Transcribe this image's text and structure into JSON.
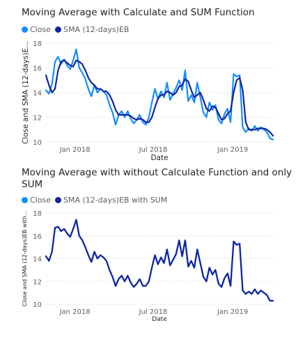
{
  "charts": [
    {
      "title_line1": "Moving Average with Calculate and SUM Function",
      "title_line2": "",
      "legend": [
        {
          "label": "Close",
          "color": "#118DFF"
        },
        {
          "label": "SMA (12-days)EB",
          "color": "#12239E"
        }
      ]
    },
    {
      "title_line1": "Moving Average with without Calculate Function and only",
      "title_line2": "SUM",
      "legend": [
        {
          "label": "Close",
          "color": "#118DFF"
        },
        {
          "label": "SMA (12-days)EB with SUM",
          "color": "#12239E"
        }
      ]
    }
  ],
  "chart_data": [
    {
      "type": "line",
      "title": "Moving Average with Calculate and SUM Function",
      "xlabel": "Date",
      "ylabel": "Close and SMA (12-days)E...",
      "ylim": [
        10,
        18
      ],
      "yticks": [
        10,
        12,
        14,
        16,
        18
      ],
      "xticks": [
        {
          "label": "Jan 2018",
          "x": "2018-01-01"
        },
        {
          "label": "Jul 2018",
          "x": "2018-07-01"
        },
        {
          "label": "Jan 2019",
          "x": "2019-01-01"
        }
      ],
      "xlim": [
        "2017-10-26",
        "2019-04-04"
      ],
      "grid": true,
      "legend_position": "top-left",
      "series": [
        {
          "name": "Close",
          "color": "#118DFF",
          "x": [
            "2017-10-26",
            "2017-11-02",
            "2017-11-09",
            "2017-11-16",
            "2017-11-23",
            "2017-11-30",
            "2017-12-07",
            "2017-12-14",
            "2017-12-21",
            "2017-12-28",
            "2018-01-04",
            "2018-01-11",
            "2018-01-18",
            "2018-01-25",
            "2018-02-01",
            "2018-02-08",
            "2018-02-15",
            "2018-02-22",
            "2018-03-01",
            "2018-03-08",
            "2018-03-15",
            "2018-03-22",
            "2018-03-29",
            "2018-04-05",
            "2018-04-12",
            "2018-04-19",
            "2018-04-26",
            "2018-05-03",
            "2018-05-10",
            "2018-05-17",
            "2018-05-24",
            "2018-05-31",
            "2018-06-07",
            "2018-06-14",
            "2018-06-21",
            "2018-06-28",
            "2018-07-05",
            "2018-07-12",
            "2018-07-19",
            "2018-07-26",
            "2018-08-02",
            "2018-08-09",
            "2018-08-16",
            "2018-08-23",
            "2018-08-30",
            "2018-09-06",
            "2018-09-13",
            "2018-09-20",
            "2018-09-27",
            "2018-10-04",
            "2018-10-11",
            "2018-10-18",
            "2018-10-25",
            "2018-11-01",
            "2018-11-08",
            "2018-11-15",
            "2018-11-22",
            "2018-11-29",
            "2018-12-06",
            "2018-12-13",
            "2018-12-20",
            "2018-12-27",
            "2019-01-03",
            "2019-01-10",
            "2019-01-17",
            "2019-01-24",
            "2019-01-31",
            "2019-02-07",
            "2019-02-14",
            "2019-02-21",
            "2019-02-28",
            "2019-03-07",
            "2019-03-14",
            "2019-03-21",
            "2019-03-28",
            "2019-04-04"
          ],
          "y": [
            14.2,
            13.9,
            14.7,
            16.5,
            16.9,
            16.3,
            16.7,
            16.2,
            15.9,
            16.6,
            17.5,
            16.0,
            15.6,
            15.1,
            14.3,
            13.7,
            14.6,
            14.0,
            14.3,
            14.1,
            13.8,
            13.0,
            12.4,
            11.4,
            12.2,
            12.5,
            12.0,
            12.5,
            11.9,
            11.5,
            11.8,
            12.2,
            11.6,
            11.4,
            12.0,
            13.2,
            14.3,
            13.5,
            14.1,
            13.6,
            14.8,
            13.4,
            13.9,
            14.4,
            15.0,
            14.2,
            15.8,
            13.3,
            13.8,
            13.2,
            14.8,
            13.6,
            12.4,
            12.0,
            13.2,
            12.6,
            13.0,
            11.8,
            11.5,
            12.3,
            12.7,
            11.6,
            15.5,
            15.3,
            15.4,
            11.2,
            10.8,
            11.1,
            10.9,
            11.3,
            10.9,
            11.2,
            11.0,
            10.8,
            10.3,
            10.2
          ]
        },
        {
          "name": "SMA (12-days)EB",
          "color": "#12239E",
          "x": [
            "2017-10-26",
            "2017-11-02",
            "2017-11-09",
            "2017-11-16",
            "2017-11-23",
            "2017-11-30",
            "2017-12-07",
            "2017-12-14",
            "2017-12-21",
            "2017-12-28",
            "2018-01-04",
            "2018-01-11",
            "2018-01-18",
            "2018-01-25",
            "2018-02-01",
            "2018-02-08",
            "2018-02-15",
            "2018-02-22",
            "2018-03-01",
            "2018-03-08",
            "2018-03-15",
            "2018-03-22",
            "2018-03-29",
            "2018-04-05",
            "2018-04-12",
            "2018-04-19",
            "2018-04-26",
            "2018-05-03",
            "2018-05-10",
            "2018-05-17",
            "2018-05-24",
            "2018-05-31",
            "2018-06-07",
            "2018-06-14",
            "2018-06-21",
            "2018-06-28",
            "2018-07-05",
            "2018-07-12",
            "2018-07-19",
            "2018-07-26",
            "2018-08-02",
            "2018-08-09",
            "2018-08-16",
            "2018-08-23",
            "2018-08-30",
            "2018-09-06",
            "2018-09-13",
            "2018-09-20",
            "2018-09-27",
            "2018-10-04",
            "2018-10-11",
            "2018-10-18",
            "2018-10-25",
            "2018-11-01",
            "2018-11-08",
            "2018-11-15",
            "2018-11-22",
            "2018-11-29",
            "2018-12-06",
            "2018-12-13",
            "2018-12-20",
            "2018-12-27",
            "2019-01-03",
            "2019-01-10",
            "2019-01-17",
            "2019-01-24",
            "2019-01-31",
            "2019-02-07",
            "2019-02-14",
            "2019-02-21",
            "2019-02-28",
            "2019-03-07",
            "2019-03-14",
            "2019-03-21",
            "2019-03-28",
            "2019-04-04"
          ],
          "y": [
            15.4,
            14.6,
            14.0,
            14.3,
            15.8,
            16.5,
            16.6,
            16.4,
            16.2,
            16.1,
            16.6,
            16.5,
            16.3,
            15.8,
            15.2,
            14.8,
            14.6,
            14.3,
            14.3,
            14.1,
            14.1,
            13.8,
            13.3,
            12.6,
            12.2,
            12.2,
            12.2,
            12.2,
            12.1,
            11.9,
            11.8,
            11.9,
            11.8,
            11.6,
            11.6,
            12.0,
            12.8,
            13.5,
            13.8,
            13.8,
            14.1,
            14.0,
            13.8,
            14.0,
            14.5,
            14.6,
            15.1,
            14.9,
            14.2,
            13.6,
            13.8,
            14.0,
            13.4,
            12.7,
            12.5,
            12.9,
            12.8,
            12.3,
            11.8,
            11.9,
            12.3,
            12.5,
            14.0,
            15.0,
            15.2,
            14.2,
            11.6,
            11.0,
            11.0,
            11.0,
            11.1,
            11.1,
            11.1,
            11.0,
            10.8,
            10.5
          ]
        }
      ]
    },
    {
      "type": "line",
      "title": "Moving Average with without Calculate Function and only SUM",
      "xlabel": "Date",
      "ylabel": "Close and SMA (12-days)EB with...",
      "ylim": [
        10,
        18
      ],
      "yticks": [
        10,
        12,
        14,
        16,
        18
      ],
      "xticks": [
        {
          "label": "Jan 2018",
          "x": "2018-01-01"
        },
        {
          "label": "Jul 2018",
          "x": "2018-07-01"
        },
        {
          "label": "Jan 2019",
          "x": "2019-01-01"
        }
      ],
      "xlim": [
        "2017-10-26",
        "2019-04-04"
      ],
      "grid": true,
      "legend_position": "top-left",
      "series": [
        {
          "name": "Close",
          "color": "#118DFF",
          "x": [
            "2017-10-26",
            "2017-11-02",
            "2017-11-09",
            "2017-11-16",
            "2017-11-23",
            "2017-11-30",
            "2017-12-07",
            "2017-12-14",
            "2017-12-21",
            "2017-12-28",
            "2018-01-04",
            "2018-01-11",
            "2018-01-18",
            "2018-01-25",
            "2018-02-01",
            "2018-02-08",
            "2018-02-15",
            "2018-02-22",
            "2018-03-01",
            "2018-03-08",
            "2018-03-15",
            "2018-03-22",
            "2018-03-29",
            "2018-04-05",
            "2018-04-12",
            "2018-04-19",
            "2018-04-26",
            "2018-05-03",
            "2018-05-10",
            "2018-05-17",
            "2018-05-24",
            "2018-05-31",
            "2018-06-07",
            "2018-06-14",
            "2018-06-21",
            "2018-06-28",
            "2018-07-05",
            "2018-07-12",
            "2018-07-19",
            "2018-07-26",
            "2018-08-02",
            "2018-08-09",
            "2018-08-16",
            "2018-08-23",
            "2018-08-30",
            "2018-09-06",
            "2018-09-13",
            "2018-09-20",
            "2018-09-27",
            "2018-10-04",
            "2018-10-11",
            "2018-10-18",
            "2018-10-25",
            "2018-11-01",
            "2018-11-08",
            "2018-11-15",
            "2018-11-22",
            "2018-11-29",
            "2018-12-06",
            "2018-12-13",
            "2018-12-20",
            "2018-12-27",
            "2019-01-03",
            "2019-01-10",
            "2019-01-17",
            "2019-01-24",
            "2019-01-31",
            "2019-02-07",
            "2019-02-14",
            "2019-02-21",
            "2019-02-28",
            "2019-03-07",
            "2019-03-14",
            "2019-03-21",
            "2019-03-28",
            "2019-04-04"
          ],
          "y": [
            14.2,
            13.8,
            14.6,
            16.7,
            16.8,
            16.4,
            16.6,
            16.2,
            15.9,
            16.6,
            17.4,
            16.0,
            15.6,
            15.0,
            14.3,
            13.7,
            14.6,
            14.0,
            14.3,
            14.1,
            13.8,
            13.0,
            12.4,
            11.6,
            12.2,
            12.5,
            12.0,
            12.5,
            11.9,
            11.5,
            11.8,
            12.2,
            11.6,
            11.6,
            12.0,
            13.2,
            14.3,
            13.5,
            14.1,
            13.6,
            14.8,
            13.4,
            13.9,
            14.4,
            15.6,
            14.2,
            15.6,
            13.3,
            13.8,
            13.2,
            14.8,
            13.6,
            12.4,
            12.0,
            13.2,
            12.6,
            13.0,
            11.8,
            11.5,
            12.3,
            12.7,
            11.6,
            15.5,
            15.2,
            15.3,
            11.2,
            10.9,
            11.1,
            10.9,
            11.3,
            10.9,
            11.2,
            11.0,
            10.8,
            10.3,
            10.3
          ]
        },
        {
          "name": "SMA (12-days)EB with SUM",
          "color": "#12239E",
          "x": [
            "2017-10-26",
            "2017-11-02",
            "2017-11-09",
            "2017-11-16",
            "2017-11-23",
            "2017-11-30",
            "2017-12-07",
            "2017-12-14",
            "2017-12-21",
            "2017-12-28",
            "2018-01-04",
            "2018-01-11",
            "2018-01-18",
            "2018-01-25",
            "2018-02-01",
            "2018-02-08",
            "2018-02-15",
            "2018-02-22",
            "2018-03-01",
            "2018-03-08",
            "2018-03-15",
            "2018-03-22",
            "2018-03-29",
            "2018-04-05",
            "2018-04-12",
            "2018-04-19",
            "2018-04-26",
            "2018-05-03",
            "2018-05-10",
            "2018-05-17",
            "2018-05-24",
            "2018-05-31",
            "2018-06-07",
            "2018-06-14",
            "2018-06-21",
            "2018-06-28",
            "2018-07-05",
            "2018-07-12",
            "2018-07-19",
            "2018-07-26",
            "2018-08-02",
            "2018-08-09",
            "2018-08-16",
            "2018-08-23",
            "2018-08-30",
            "2018-09-06",
            "2018-09-13",
            "2018-09-20",
            "2018-09-27",
            "2018-10-04",
            "2018-10-11",
            "2018-10-18",
            "2018-10-25",
            "2018-11-01",
            "2018-11-08",
            "2018-11-15",
            "2018-11-22",
            "2018-11-29",
            "2018-12-06",
            "2018-12-13",
            "2018-12-20",
            "2018-12-27",
            "2019-01-03",
            "2019-01-10",
            "2019-01-17",
            "2019-01-24",
            "2019-01-31",
            "2019-02-07",
            "2019-02-14",
            "2019-02-21",
            "2019-02-28",
            "2019-03-07",
            "2019-03-14",
            "2019-03-21",
            "2019-03-28",
            "2019-04-04"
          ],
          "y": [
            14.2,
            13.8,
            14.6,
            16.7,
            16.8,
            16.4,
            16.6,
            16.2,
            15.9,
            16.6,
            17.4,
            16.0,
            15.6,
            15.0,
            14.3,
            13.7,
            14.6,
            14.0,
            14.3,
            14.1,
            13.8,
            13.0,
            12.4,
            11.6,
            12.2,
            12.5,
            12.0,
            12.5,
            11.9,
            11.5,
            11.8,
            12.2,
            11.6,
            11.6,
            12.0,
            13.2,
            14.3,
            13.5,
            14.1,
            13.6,
            14.8,
            13.4,
            13.9,
            14.4,
            15.6,
            14.2,
            15.6,
            13.3,
            13.8,
            13.2,
            14.8,
            13.6,
            12.4,
            12.0,
            13.2,
            12.6,
            13.0,
            11.8,
            11.5,
            12.3,
            12.7,
            11.6,
            15.5,
            15.2,
            15.3,
            11.2,
            10.9,
            11.1,
            10.9,
            11.3,
            10.9,
            11.2,
            11.0,
            10.8,
            10.3,
            10.3
          ]
        }
      ]
    }
  ]
}
